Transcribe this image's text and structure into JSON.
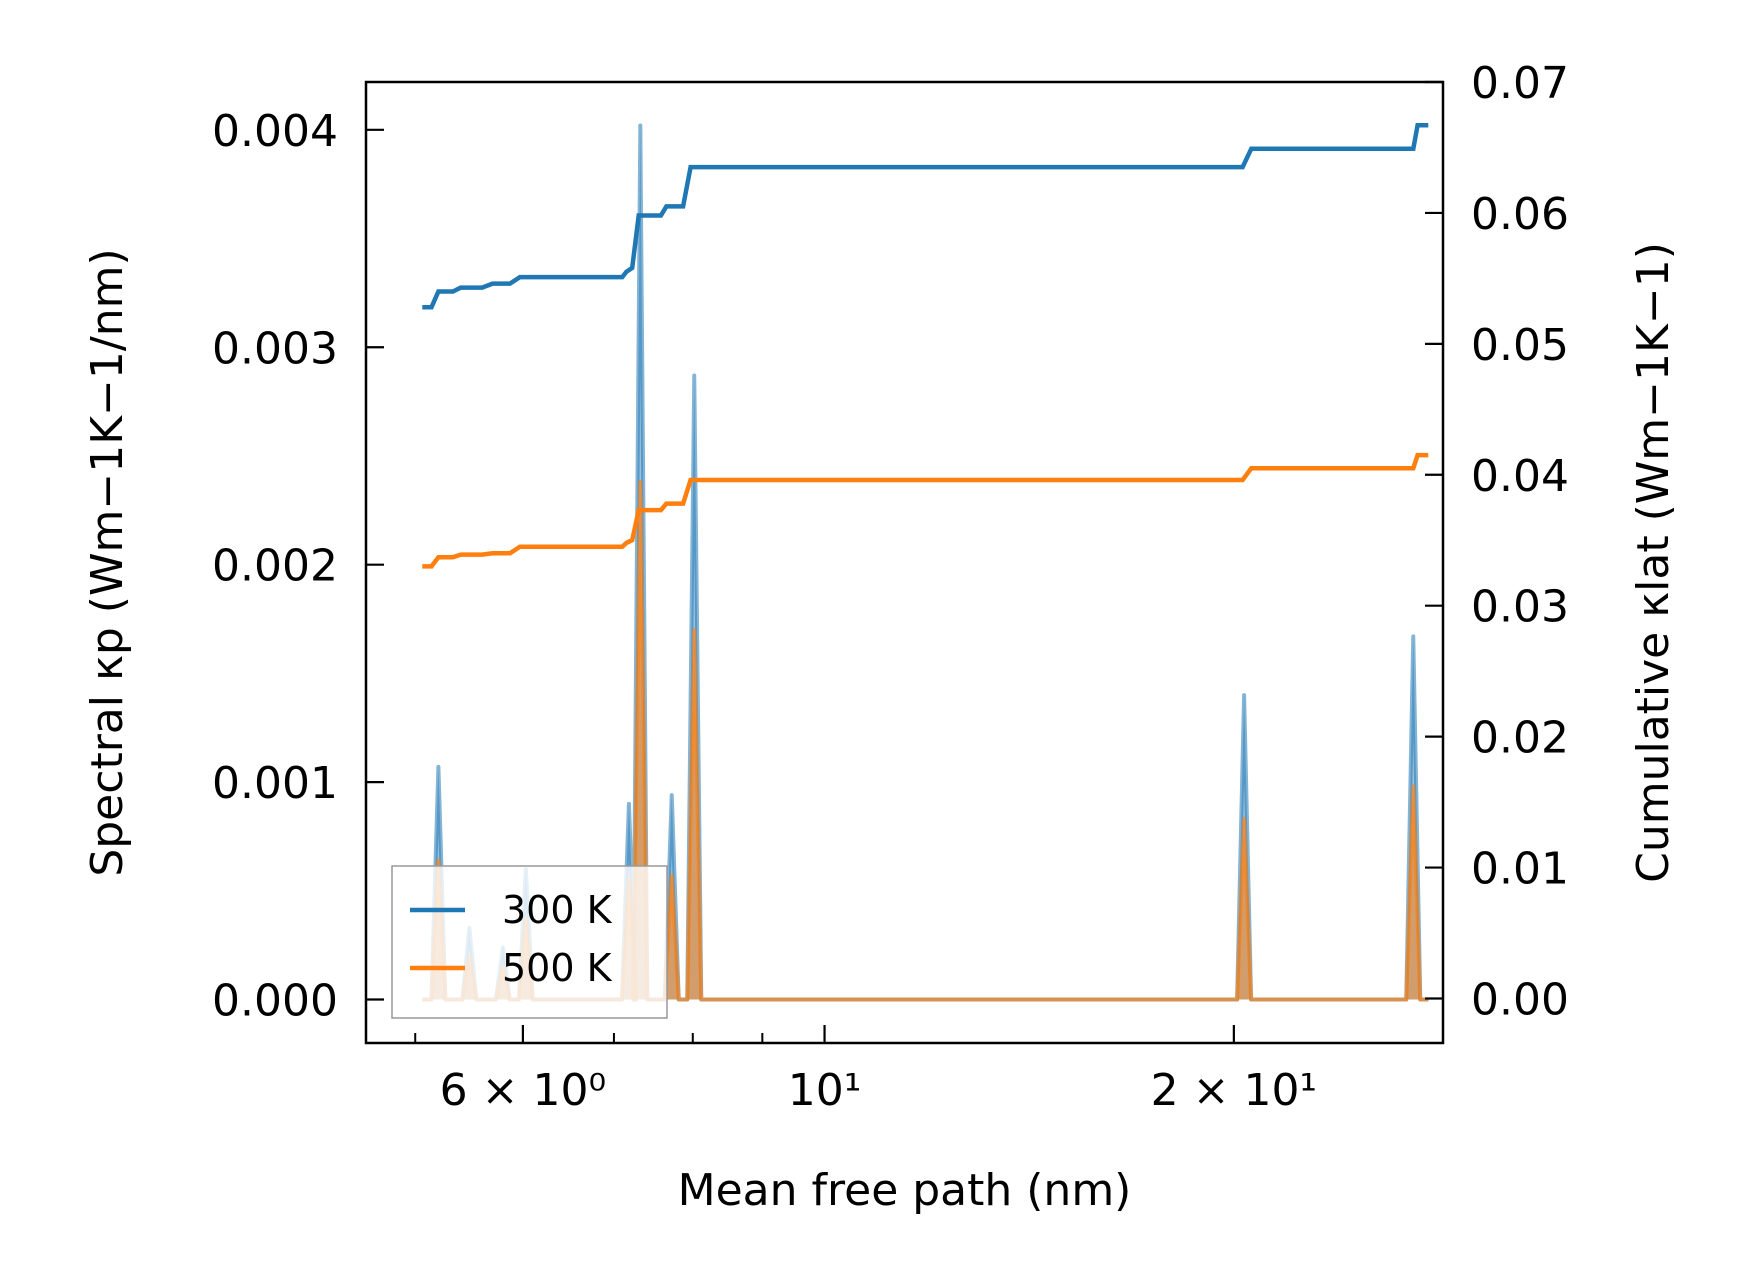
{
  "chart_data": {
    "type": "line",
    "x_scale": "log",
    "xlabel": "Mean free path (nm)",
    "ylabel_left": "Spectral κp (Wm−1K−1/nm)",
    "ylabel_right": "Cumulative κlat (Wm−1K−1)",
    "xlim": [
      4.6,
      28.5
    ],
    "ylim_left": [
      -0.0002,
      0.00422
    ],
    "ylim_right": [
      -0.0034,
      0.07
    ],
    "x_ticks": [
      {
        "value": 6,
        "label": "6 × 10⁰"
      },
      {
        "value": 10,
        "label": "10¹"
      },
      {
        "value": 20,
        "label": "2 × 10¹"
      }
    ],
    "y_ticks_left": [
      "0.000",
      "0.001",
      "0.002",
      "0.003",
      "0.004"
    ],
    "y_ticks_right": [
      "0.00",
      "0.01",
      "0.02",
      "0.03",
      "0.04",
      "0.05",
      "0.06",
      "0.07"
    ],
    "grid": false,
    "legend_position": "lower-left",
    "series": [
      {
        "name": "300 K",
        "color": "#1f77b4",
        "cumulative": [
          [
            5.06,
            0.0528
          ],
          [
            5.14,
            0.0528
          ],
          [
            5.2,
            0.054
          ],
          [
            5.33,
            0.054
          ],
          [
            5.4,
            0.0543
          ],
          [
            5.6,
            0.0543
          ],
          [
            5.7,
            0.0546
          ],
          [
            5.87,
            0.0546
          ],
          [
            5.97,
            0.0551
          ],
          [
            7.1,
            0.0551
          ],
          [
            7.15,
            0.0555
          ],
          [
            7.22,
            0.0558
          ],
          [
            7.3,
            0.0598
          ],
          [
            7.58,
            0.0598
          ],
          [
            7.65,
            0.0605
          ],
          [
            7.87,
            0.0605
          ],
          [
            7.97,
            0.0635
          ],
          [
            20.3,
            0.0635
          ],
          [
            20.6,
            0.0649
          ],
          [
            27.1,
            0.0649
          ],
          [
            27.3,
            0.0667
          ],
          [
            27.8,
            0.0667
          ]
        ],
        "spectral_peaks": [
          {
            "x": 5.2,
            "y": 0.00107
          },
          {
            "x": 5.48,
            "y": 0.00033
          },
          {
            "x": 5.8,
            "y": 0.00024
          },
          {
            "x": 6.03,
            "y": 0.0006
          },
          {
            "x": 7.18,
            "y": 0.0009
          },
          {
            "x": 7.32,
            "y": 0.00402
          },
          {
            "x": 7.72,
            "y": 0.00094
          },
          {
            "x": 8.02,
            "y": 0.00287
          },
          {
            "x": 20.35,
            "y": 0.0014
          },
          {
            "x": 27.1,
            "y": 0.00167
          }
        ]
      },
      {
        "name": "500 K",
        "color": "#ff7f0e",
        "cumulative": [
          [
            5.06,
            0.033
          ],
          [
            5.14,
            0.033
          ],
          [
            5.2,
            0.0337
          ],
          [
            5.33,
            0.0337
          ],
          [
            5.4,
            0.0339
          ],
          [
            5.6,
            0.0339
          ],
          [
            5.7,
            0.034
          ],
          [
            5.87,
            0.034
          ],
          [
            5.97,
            0.0345
          ],
          [
            7.1,
            0.0345
          ],
          [
            7.15,
            0.0348
          ],
          [
            7.22,
            0.035
          ],
          [
            7.3,
            0.0373
          ],
          [
            7.58,
            0.0373
          ],
          [
            7.65,
            0.0378
          ],
          [
            7.87,
            0.0378
          ],
          [
            7.97,
            0.0396
          ],
          [
            20.3,
            0.0396
          ],
          [
            20.6,
            0.0405
          ],
          [
            27.1,
            0.0405
          ],
          [
            27.3,
            0.0415
          ],
          [
            27.8,
            0.0415
          ]
        ],
        "spectral_peaks": [
          {
            "x": 5.2,
            "y": 0.00064
          },
          {
            "x": 5.48,
            "y": 0.0002
          },
          {
            "x": 5.8,
            "y": 0.00015
          },
          {
            "x": 6.03,
            "y": 0.00037
          },
          {
            "x": 7.18,
            "y": 0.00055
          },
          {
            "x": 7.32,
            "y": 0.00238
          },
          {
            "x": 7.72,
            "y": 0.00057
          },
          {
            "x": 8.02,
            "y": 0.0017
          },
          {
            "x": 20.35,
            "y": 0.00083
          },
          {
            "x": 27.1,
            "y": 0.00098
          }
        ]
      }
    ]
  }
}
